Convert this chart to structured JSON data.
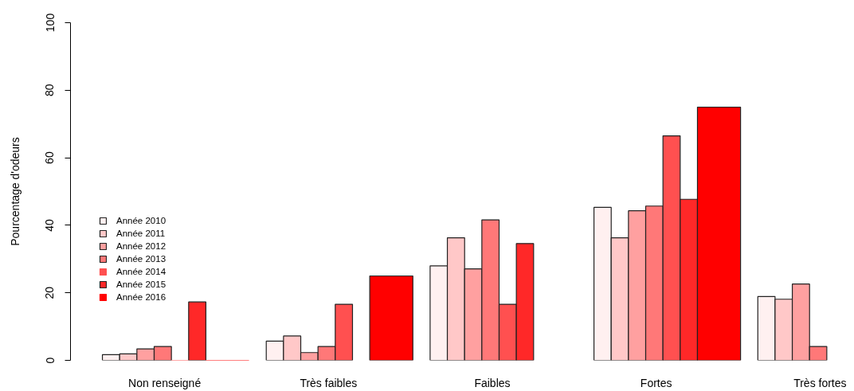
{
  "chart_data": {
    "type": "bar",
    "ylabel": "Pourcentage d'odeurs",
    "categories": [
      "Non renseigné",
      "Très faibles",
      "Faibles",
      "Fortes",
      "Très fortes"
    ],
    "series": [
      {
        "name": "Année 2010",
        "color": "#fff0f0",
        "values": [
          1.7,
          5.7,
          28.0,
          45.3,
          18.9
        ]
      },
      {
        "name": "Année 2011",
        "color": "#ffc8c8",
        "values": [
          1.9,
          7.2,
          36.3,
          36.3,
          18.1
        ]
      },
      {
        "name": "Année 2012",
        "color": "#ffa0a0",
        "values": [
          3.4,
          2.3,
          27.1,
          44.3,
          22.6
        ]
      },
      {
        "name": "Année 2013",
        "color": "#ff7878",
        "values": [
          4.1,
          4.1,
          41.6,
          45.7,
          4.1
        ]
      },
      {
        "name": "Année 2014",
        "color": "#ff5050",
        "values": [
          0,
          16.6,
          16.6,
          66.5,
          null
        ]
      },
      {
        "name": "Année 2015",
        "color": "#ff2828",
        "values": [
          17.3,
          null,
          34.6,
          47.7,
          null
        ]
      },
      {
        "name": "Année 2016",
        "color": "#ff0000",
        "values": [
          0,
          25.0,
          null,
          75.0,
          null
        ]
      }
    ],
    "ylim": [
      0,
      100
    ],
    "yticks": [
      0,
      20,
      40,
      60,
      80,
      100
    ],
    "grid": false,
    "legend": "left"
  }
}
